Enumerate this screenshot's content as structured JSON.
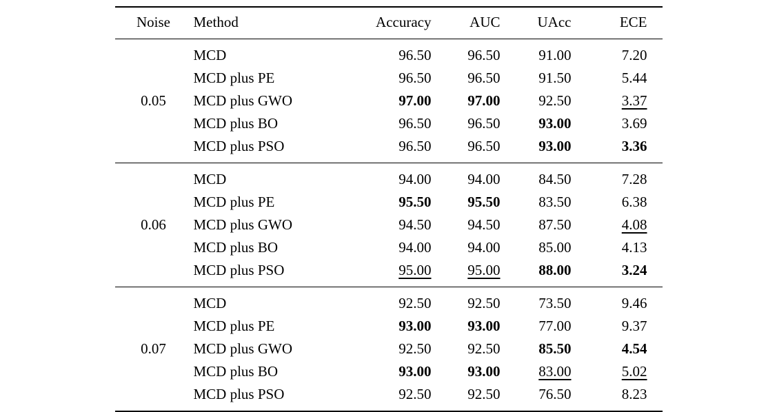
{
  "page": {
    "background": "#ffffff",
    "text_color": "#000000"
  },
  "table": {
    "columns": [
      {
        "label": "Noise",
        "align": "center"
      },
      {
        "label": "Method",
        "align": "left"
      },
      {
        "label": "Accuracy",
        "align": "right"
      },
      {
        "label": "AUC",
        "align": "right"
      },
      {
        "label": "UAcc",
        "align": "right"
      },
      {
        "label": "ECE",
        "align": "right"
      }
    ],
    "groups": [
      {
        "noise": "0.05",
        "rows": [
          {
            "method": "MCD",
            "cells": [
              {
                "text": "96.50"
              },
              {
                "text": "96.50"
              },
              {
                "text": "91.00"
              },
              {
                "text": "7.20"
              }
            ]
          },
          {
            "method": "MCD plus PE",
            "cells": [
              {
                "text": "96.50"
              },
              {
                "text": "96.50"
              },
              {
                "text": "91.50"
              },
              {
                "text": "5.44"
              }
            ]
          },
          {
            "method": "MCD plus GWO",
            "cells": [
              {
                "text": "97.00",
                "bold": true
              },
              {
                "text": "97.00",
                "bold": true
              },
              {
                "text": "92.50"
              },
              {
                "text": "3.37",
                "underline": true
              }
            ]
          },
          {
            "method": "MCD plus BO",
            "cells": [
              {
                "text": "96.50"
              },
              {
                "text": "96.50"
              },
              {
                "text": "93.00",
                "bold": true
              },
              {
                "text": "3.69"
              }
            ]
          },
          {
            "method": "MCD plus PSO",
            "cells": [
              {
                "text": "96.50"
              },
              {
                "text": "96.50"
              },
              {
                "text": "93.00",
                "bold": true
              },
              {
                "text": "3.36",
                "bold": true
              }
            ]
          }
        ]
      },
      {
        "noise": "0.06",
        "rows": [
          {
            "method": "MCD",
            "cells": [
              {
                "text": "94.00"
              },
              {
                "text": "94.00"
              },
              {
                "text": "84.50"
              },
              {
                "text": "7.28"
              }
            ]
          },
          {
            "method": "MCD plus PE",
            "cells": [
              {
                "text": "95.50",
                "bold": true
              },
              {
                "text": "95.50",
                "bold": true
              },
              {
                "text": "83.50"
              },
              {
                "text": "6.38"
              }
            ]
          },
          {
            "method": "MCD plus GWO",
            "cells": [
              {
                "text": "94.50"
              },
              {
                "text": "94.50"
              },
              {
                "text": "87.50"
              },
              {
                "text": "4.08",
                "underline": true
              }
            ]
          },
          {
            "method": "MCD plus BO",
            "cells": [
              {
                "text": "94.00"
              },
              {
                "text": "94.00"
              },
              {
                "text": "85.00"
              },
              {
                "text": "4.13"
              }
            ]
          },
          {
            "method": "MCD plus PSO",
            "cells": [
              {
                "text": "95.00",
                "underline": true
              },
              {
                "text": "95.00",
                "underline": true
              },
              {
                "text": "88.00",
                "bold": true
              },
              {
                "text": "3.24",
                "bold": true
              }
            ]
          }
        ]
      },
      {
        "noise": "0.07",
        "rows": [
          {
            "method": "MCD",
            "cells": [
              {
                "text": "92.50"
              },
              {
                "text": "92.50"
              },
              {
                "text": "73.50"
              },
              {
                "text": "9.46"
              }
            ]
          },
          {
            "method": "MCD plus PE",
            "cells": [
              {
                "text": "93.00",
                "bold": true
              },
              {
                "text": "93.00",
                "bold": true
              },
              {
                "text": "77.00"
              },
              {
                "text": "9.37"
              }
            ]
          },
          {
            "method": "MCD plus GWO",
            "cells": [
              {
                "text": "92.50"
              },
              {
                "text": "92.50"
              },
              {
                "text": "85.50",
                "bold": true
              },
              {
                "text": "4.54",
                "bold": true
              }
            ]
          },
          {
            "method": "MCD plus BO",
            "cells": [
              {
                "text": "93.00",
                "bold": true
              },
              {
                "text": "93.00",
                "bold": true
              },
              {
                "text": "83.00",
                "underline": true
              },
              {
                "text": "5.02",
                "underline": true
              }
            ]
          },
          {
            "method": "MCD plus PSO",
            "cells": [
              {
                "text": "92.50"
              },
              {
                "text": "92.50"
              },
              {
                "text": "76.50"
              },
              {
                "text": "8.23"
              }
            ]
          }
        ]
      }
    ]
  }
}
